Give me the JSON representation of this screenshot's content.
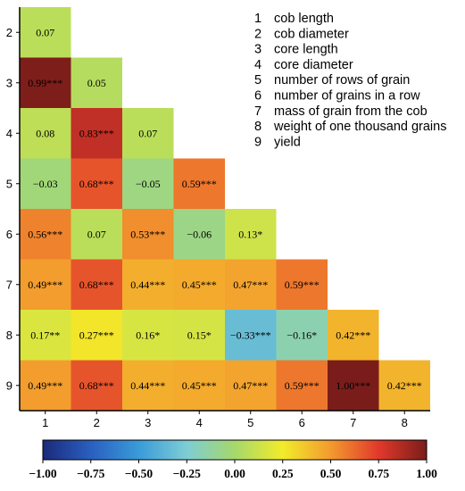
{
  "chart_data": {
    "type": "heatmap",
    "title": "",
    "xlabel": "",
    "ylabel": "",
    "x_tick_labels": [
      "1",
      "2",
      "3",
      "4",
      "5",
      "6",
      "7",
      "8"
    ],
    "y_tick_labels": [
      "2",
      "3",
      "4",
      "5",
      "6",
      "7",
      "8",
      "9"
    ],
    "cells": [
      {
        "row": "2",
        "col": "1",
        "value": 0.07,
        "label": "0.07"
      },
      {
        "row": "3",
        "col": "1",
        "value": 0.99,
        "label": "0.99***"
      },
      {
        "row": "3",
        "col": "2",
        "value": 0.05,
        "label": "0.05"
      },
      {
        "row": "4",
        "col": "1",
        "value": 0.08,
        "label": "0.08"
      },
      {
        "row": "4",
        "col": "2",
        "value": 0.83,
        "label": "0.83***"
      },
      {
        "row": "4",
        "col": "3",
        "value": 0.07,
        "label": "0.07"
      },
      {
        "row": "5",
        "col": "1",
        "value": -0.03,
        "label": "−0.03"
      },
      {
        "row": "5",
        "col": "2",
        "value": 0.68,
        "label": "0.68***"
      },
      {
        "row": "5",
        "col": "3",
        "value": -0.05,
        "label": "−0.05"
      },
      {
        "row": "5",
        "col": "4",
        "value": 0.59,
        "label": "0.59***"
      },
      {
        "row": "6",
        "col": "1",
        "value": 0.56,
        "label": "0.56***"
      },
      {
        "row": "6",
        "col": "2",
        "value": 0.07,
        "label": "0.07"
      },
      {
        "row": "6",
        "col": "3",
        "value": 0.53,
        "label": "0.53***"
      },
      {
        "row": "6",
        "col": "4",
        "value": -0.06,
        "label": "−0.06"
      },
      {
        "row": "6",
        "col": "5",
        "value": 0.13,
        "label": "0.13*"
      },
      {
        "row": "7",
        "col": "1",
        "value": 0.49,
        "label": "0.49***"
      },
      {
        "row": "7",
        "col": "2",
        "value": 0.68,
        "label": "0.68***"
      },
      {
        "row": "7",
        "col": "3",
        "value": 0.44,
        "label": "0.44***"
      },
      {
        "row": "7",
        "col": "4",
        "value": 0.45,
        "label": "0.45***"
      },
      {
        "row": "7",
        "col": "5",
        "value": 0.47,
        "label": "0.47***"
      },
      {
        "row": "7",
        "col": "6",
        "value": 0.59,
        "label": "0.59***"
      },
      {
        "row": "8",
        "col": "1",
        "value": 0.17,
        "label": "0.17**"
      },
      {
        "row": "8",
        "col": "2",
        "value": 0.27,
        "label": "0.27***"
      },
      {
        "row": "8",
        "col": "3",
        "value": 0.16,
        "label": "0.16*"
      },
      {
        "row": "8",
        "col": "4",
        "value": 0.15,
        "label": "0.15*"
      },
      {
        "row": "8",
        "col": "5",
        "value": -0.33,
        "label": "−0.33***"
      },
      {
        "row": "8",
        "col": "6",
        "value": -0.16,
        "label": "−0.16*"
      },
      {
        "row": "8",
        "col": "7",
        "value": 0.42,
        "label": "0.42***"
      },
      {
        "row": "9",
        "col": "1",
        "value": 0.49,
        "label": "0.49***"
      },
      {
        "row": "9",
        "col": "2",
        "value": 0.68,
        "label": "0.68***"
      },
      {
        "row": "9",
        "col": "3",
        "value": 0.44,
        "label": "0.44***"
      },
      {
        "row": "9",
        "col": "4",
        "value": 0.45,
        "label": "0.45***"
      },
      {
        "row": "9",
        "col": "5",
        "value": 0.47,
        "label": "0.47***"
      },
      {
        "row": "9",
        "col": "6",
        "value": 0.59,
        "label": "0.59***"
      },
      {
        "row": "9",
        "col": "7",
        "value": 1.0,
        "label": "1.00***"
      },
      {
        "row": "9",
        "col": "8",
        "value": 0.42,
        "label": "0.42***"
      }
    ],
    "colorbar": {
      "range": [
        -1.0,
        1.0
      ],
      "tick_values": [
        -1.0,
        -0.75,
        -0.5,
        -0.25,
        0.0,
        0.25,
        0.5,
        0.75,
        1.0
      ],
      "tick_labels": [
        "−1.00",
        "−0.75",
        "−0.50",
        "−0.25",
        "0.00",
        "0.25",
        "0.50",
        "0.75",
        "1.00"
      ],
      "color_stops": [
        {
          "value": -1.0,
          "color": "#1b2a7a"
        },
        {
          "value": -0.75,
          "color": "#2a5fc0"
        },
        {
          "value": -0.5,
          "color": "#3a9bd8"
        },
        {
          "value": -0.25,
          "color": "#7ecdd4"
        },
        {
          "value": 0.0,
          "color": "#a6d86c"
        },
        {
          "value": 0.25,
          "color": "#f2ec2a"
        },
        {
          "value": 0.5,
          "color": "#f39a2e"
        },
        {
          "value": 0.75,
          "color": "#e1392b"
        },
        {
          "value": 1.0,
          "color": "#7a1d1a"
        }
      ],
      "placement": "bottom"
    },
    "legend": {
      "placement": "top-right",
      "entries": [
        {
          "num": "1",
          "text": "cob length"
        },
        {
          "num": "2",
          "text": "cob diameter"
        },
        {
          "num": "3",
          "text": "core length"
        },
        {
          "num": "4",
          "text": "core diameter"
        },
        {
          "num": "5",
          "text": "number of rows of grain"
        },
        {
          "num": "6",
          "text": "number of grains in a row"
        },
        {
          "num": "7",
          "text": "mass of grain from the cob"
        },
        {
          "num": "8",
          "text": "weight of one thousand grains"
        },
        {
          "num": "9",
          "text": "yield"
        }
      ]
    },
    "grid": false
  }
}
